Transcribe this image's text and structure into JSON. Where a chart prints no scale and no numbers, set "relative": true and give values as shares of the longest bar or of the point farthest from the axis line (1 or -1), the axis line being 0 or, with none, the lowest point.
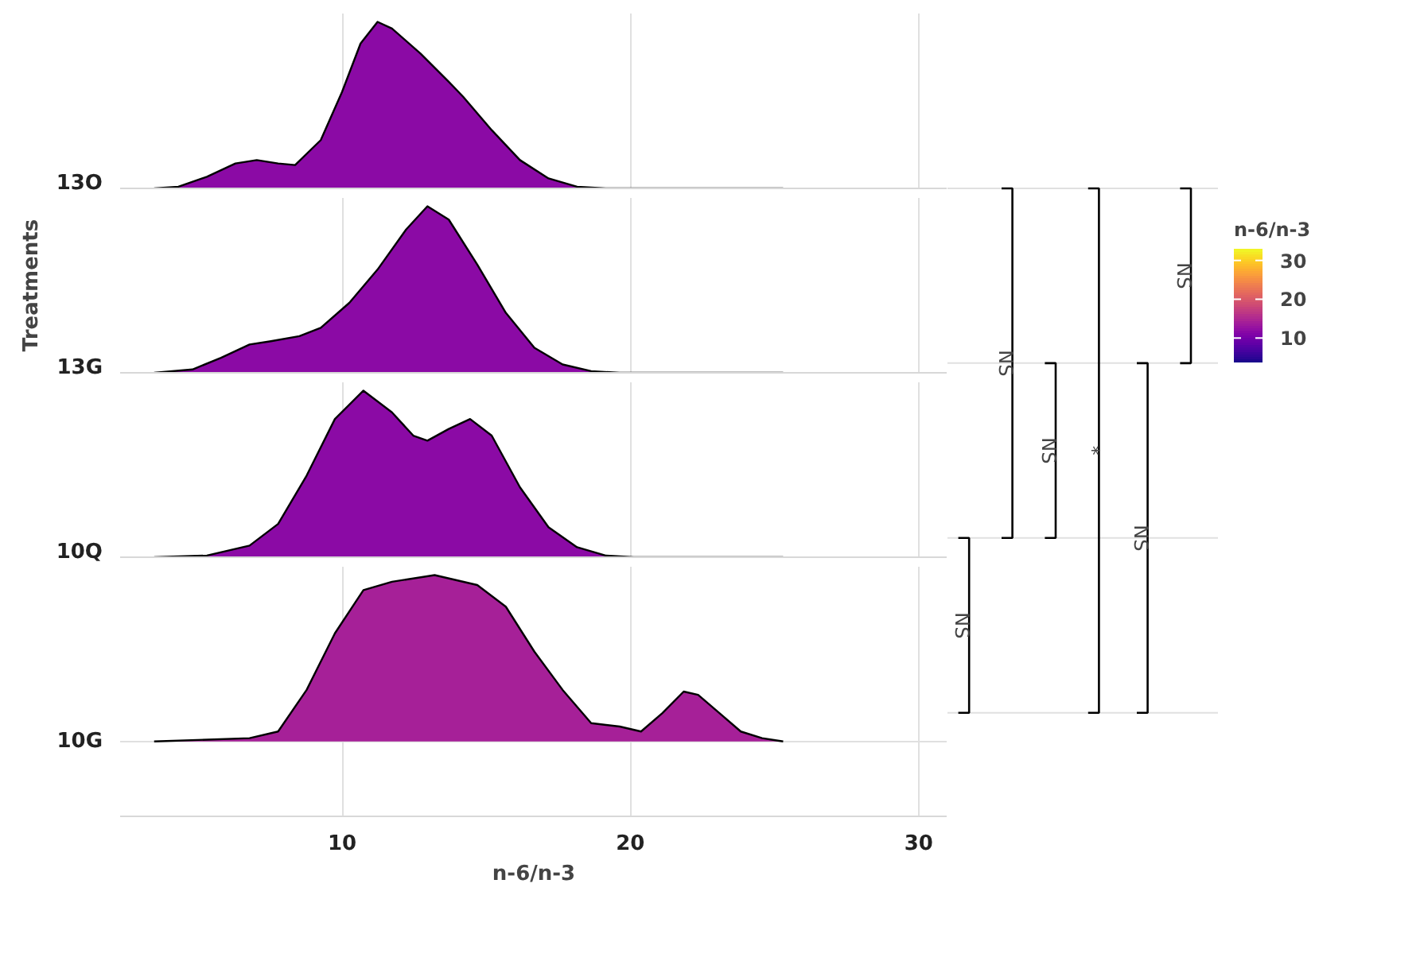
{
  "chart_data": [
    {
      "type": "area",
      "relative": true,
      "xlim": [
        2.3,
        31
      ],
      "xticks": [
        10,
        20,
        30
      ],
      "tick_labels": "y",
      "grid": true,
      "series": [
        {
          "name": "13O",
          "color": "#8b0aa5",
          "x": [
            3.48,
            4.32,
            5.31,
            6.3,
            7.04,
            7.78,
            8.37,
            9.26,
            10,
            10.64,
            11.23,
            11.73,
            12.72,
            13.7,
            14.2,
            15.19,
            16.17,
            17.16,
            18.15,
            19.14,
            25.3
          ],
          "values": [
            0,
            0.01,
            0.07,
            0.15,
            0.17,
            0.15,
            0.14,
            0.29,
            0.58,
            0.87,
            1,
            0.96,
            0.81,
            0.64,
            0.55,
            0.35,
            0.17,
            0.06,
            0.01,
            0,
            0
          ]
        }
      ]
    },
    {
      "type": "area",
      "relative": true,
      "xlim": [
        2.3,
        31
      ],
      "xticks": [
        10,
        20,
        30
      ],
      "tick_labels": "y",
      "grid": true,
      "ylabel": "Treatments",
      "clim": [
        3.5,
        33
      ],
      "cticks": [
        10,
        20,
        30
      ],
      "clabel": "n-6/n-3",
      "series": [
        {
          "name": "13G",
          "color": "#8b0aa5",
          "x": [
            3.48,
            4.81,
            5.8,
            6.79,
            7.53,
            8.52,
            9.26,
            10.25,
            11.23,
            12.22,
            12.96,
            13.7,
            14.69,
            15.68,
            16.67,
            17.65,
            18.64,
            19.63,
            25.3
          ],
          "values": [
            0,
            0.02,
            0.09,
            0.17,
            0.19,
            0.22,
            0.27,
            0.42,
            0.62,
            0.86,
            1,
            0.92,
            0.65,
            0.36,
            0.15,
            0.05,
            0.01,
            0,
            0
          ]
        }
      ]
    },
    {
      "type": "area",
      "relative": true,
      "xlim": [
        2.3,
        31
      ],
      "xticks": [
        10,
        20,
        30
      ],
      "tick_labels": "y",
      "grid": true,
      "series": [
        {
          "name": "10Q",
          "color": "#8b0aa5",
          "x": [
            3.48,
            5.31,
            6.79,
            7.78,
            8.77,
            9.75,
            10.74,
            11.73,
            12.47,
            12.96,
            13.7,
            14.44,
            15.19,
            16.17,
            17.16,
            18.15,
            19.14,
            20.12,
            25.3
          ],
          "values": [
            0,
            0.01,
            0.07,
            0.2,
            0.49,
            0.83,
            1,
            0.87,
            0.73,
            0.7,
            0.77,
            0.83,
            0.73,
            0.42,
            0.18,
            0.06,
            0.01,
            0,
            0
          ]
        }
      ]
    },
    {
      "type": "area",
      "relative": true,
      "xlim": [
        2.3,
        31
      ],
      "xticks": [
        10,
        20,
        30
      ],
      "grid": true,
      "xlabel": "n-6/n-3",
      "series": [
        {
          "name": "10G",
          "color": "#a62098",
          "x": [
            3.48,
            6.79,
            7.78,
            8.77,
            9.75,
            10.74,
            11.73,
            13.21,
            14.69,
            15.68,
            16.67,
            17.65,
            18.64,
            19.63,
            20.37,
            21.11,
            21.85,
            22.35,
            23.09,
            23.83,
            24.57,
            25.3
          ],
          "values": [
            0,
            0.02,
            0.06,
            0.31,
            0.65,
            0.91,
            0.96,
            1,
            0.94,
            0.81,
            0.54,
            0.31,
            0.11,
            0.09,
            0.06,
            0.17,
            0.3,
            0.28,
            0.17,
            0.06,
            0.02,
            0
          ]
        }
      ]
    },
    {
      "type": "other",
      "annotations": [
        "NS",
        "NS",
        "NS",
        "*",
        "NS",
        "NS"
      ]
    }
  ]
}
